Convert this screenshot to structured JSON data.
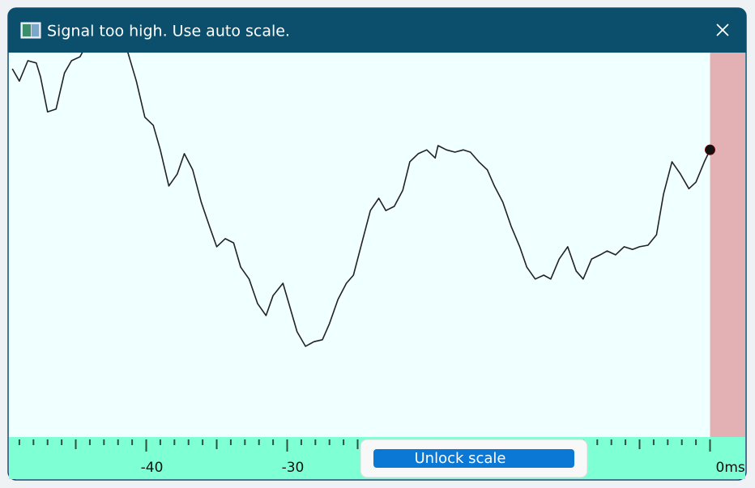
{
  "window": {
    "title": "Signal too high. Use auto scale."
  },
  "button": {
    "label": "Unlock scale"
  },
  "chart_data": {
    "type": "line",
    "color": "#222222",
    "x": [
      -49.5,
      -49.0,
      -48.4,
      -47.8,
      -47.5,
      -47.0,
      -46.4,
      -45.8,
      -45.3,
      -44.7,
      -44.1,
      -42.7,
      -41.3,
      -40.7,
      -40.1,
      -39.5,
      -39.0,
      -38.4,
      -37.8,
      -37.3,
      -36.7,
      -36.1,
      -35.5,
      -35.0,
      -34.4,
      -33.8,
      -33.3,
      -32.7,
      -32.1,
      -31.5,
      -31.0,
      -30.3,
      -29.8,
      -29.3,
      -28.7,
      -28.1,
      -27.5,
      -27.0,
      -26.4,
      -25.8,
      -25.3,
      -24.7,
      -24.1,
      -23.5,
      -23.0,
      -22.4,
      -21.8,
      -21.3,
      -20.7,
      -20.1,
      -19.5,
      -19.3,
      -18.7,
      -18.1,
      -17.5,
      -17.0,
      -16.4,
      -15.8,
      -15.3,
      -14.7,
      -14.1,
      -13.5,
      -13.0,
      -12.4,
      -11.8,
      -11.3,
      -10.7,
      -10.1,
      -9.5,
      -9.0,
      -8.4,
      -7.8,
      -7.3,
      -6.7,
      -6.1,
      -5.5,
      -5.0,
      -4.4,
      -3.8,
      -3.3,
      -2.7,
      -2.1,
      -1.5,
      -1.0,
      -0.4,
      0.0
    ],
    "values": [
      95.8,
      92.6,
      97.9,
      97.3,
      93.7,
      84.6,
      85.3,
      94.7,
      97.9,
      98.9,
      103,
      106,
      100,
      92.6,
      83.2,
      81.1,
      74.7,
      65.3,
      68.4,
      73.7,
      69.5,
      61.1,
      54.7,
      49.5,
      51.6,
      50.5,
      44.2,
      41.1,
      34.7,
      31.6,
      36.8,
      40.0,
      33.7,
      27.4,
      23.6,
      24.8,
      25.3,
      29.5,
      35.8,
      40.0,
      42.1,
      50.5,
      58.9,
      62.1,
      58.9,
      60.0,
      64.2,
      71.6,
      73.7,
      74.7,
      72.6,
      75.8,
      74.7,
      74.1,
      74.7,
      74.1,
      71.6,
      69.5,
      65.3,
      61.1,
      54.7,
      49.5,
      44.2,
      41.1,
      42.1,
      41.1,
      46.3,
      49.5,
      43.2,
      41.1,
      46.3,
      47.4,
      48.4,
      47.4,
      49.5,
      48.8,
      49.5,
      49.9,
      52.6,
      63.2,
      71.6,
      68.4,
      64.6,
      66.3,
      71.6,
      74.7
    ],
    "xlim": [
      -49.8,
      2.5
    ],
    "ylim": [
      0,
      100
    ],
    "xticks": [
      -40,
      -30,
      {
        "value": 0,
        "label": "0ms"
      }
    ],
    "minor_xticks": [
      -49,
      -48,
      -47,
      -46,
      -45,
      -44,
      -43,
      -42,
      -41,
      -40,
      -39,
      -38,
      -37,
      -36,
      -35,
      -34,
      -33,
      -32,
      -31,
      -30,
      -29,
      -28,
      -27,
      -26,
      -25,
      -24,
      -23,
      -22,
      -21,
      -20,
      -19,
      -18,
      -17,
      -16,
      -15,
      -14,
      -13,
      -12,
      -11,
      -10,
      -9,
      -8,
      -7,
      -6,
      -5,
      -4,
      -3,
      -2,
      -1,
      0
    ]
  }
}
